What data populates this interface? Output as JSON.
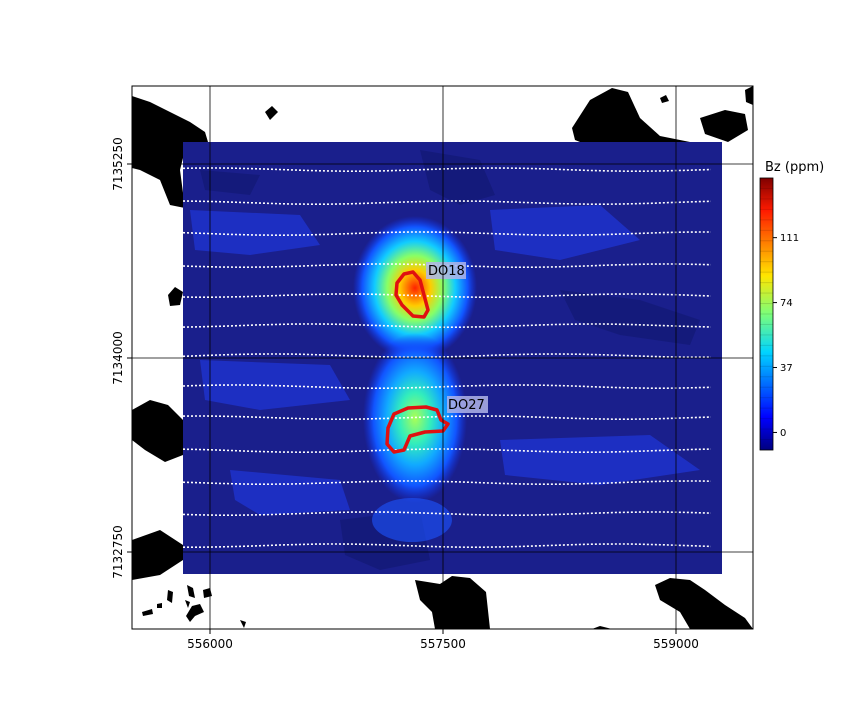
{
  "map": {
    "x_ticks": [
      "556000",
      "557500",
      "559000"
    ],
    "y_ticks": [
      "7135250",
      "7134000",
      "7132750"
    ],
    "x_range": [
      555500,
      559500
    ],
    "y_range": [
      7132350,
      7135850
    ],
    "labels": {
      "do18": "DO18",
      "do27": "DO27"
    },
    "colors": {
      "background_fill": "#1a1f8c",
      "outcrop": "#000000",
      "grid": "#000000",
      "flight_line": "#ffffff",
      "target_outline": "#e01010",
      "label_box": "#b0b4e8"
    }
  },
  "colorbar": {
    "title": "Bz (ppm)",
    "ticks": [
      "111",
      "74",
      "37",
      "0"
    ],
    "tick_values": [
      111,
      74,
      37,
      0
    ],
    "range": [
      -10,
      145
    ],
    "colormap": "jet"
  }
}
